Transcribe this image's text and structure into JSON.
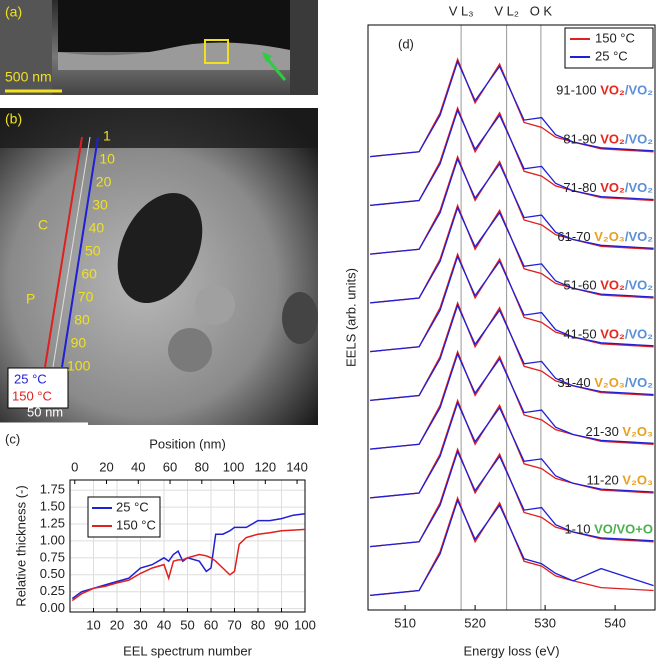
{
  "figure": {
    "a": {
      "label": "(a)",
      "scale": "500 nm"
    },
    "b": {
      "label": "(b)",
      "marker_c": "C",
      "marker_p": "P",
      "scale": "50 nm",
      "legend_25": "25 °C",
      "legend_150": "150 °C",
      "positions": [
        "1",
        "10",
        "20",
        "30",
        "40",
        "50",
        "60",
        "70",
        "80",
        "90",
        "100"
      ]
    },
    "c": {
      "label": "(c)"
    },
    "d": {
      "label": "(d)"
    }
  },
  "chart_data": [
    {
      "type": "line",
      "xlabel": "EEL spectrum number",
      "ylabel": "Relative thickness (-)",
      "x2label": "Position (nm)",
      "x": [
        1,
        5,
        10,
        15,
        20,
        25,
        30,
        35,
        40,
        42,
        44,
        46,
        48,
        50,
        55,
        58,
        60,
        62,
        65,
        68,
        70,
        72,
        75,
        80,
        85,
        90,
        95,
        100
      ],
      "xlim": [
        0,
        100
      ],
      "xticks": [
        10,
        20,
        30,
        40,
        50,
        60,
        70,
        80,
        90,
        100
      ],
      "x2lim": [
        -3,
        145
      ],
      "x2ticks": [
        0,
        20,
        40,
        60,
        80,
        100,
        120,
        140
      ],
      "ylim": [
        -0.05,
        1.9
      ],
      "yticks": [
        {
          "value": 0,
          "label": "0.00"
        },
        {
          "value": 0.25,
          "label": "0.25"
        },
        {
          "value": 0.5,
          "label": "0.50"
        },
        {
          "value": 0.75,
          "label": "0.75"
        },
        {
          "value": 1,
          "label": "1.00"
        },
        {
          "value": 1.25,
          "label": "1.25"
        },
        {
          "value": 1.5,
          "label": "1.50"
        },
        {
          "value": 1.75,
          "label": "1.75"
        }
      ],
      "grid": true,
      "legend": "upper-left",
      "series": [
        {
          "name": "25 °C",
          "color": "#1f1fd6",
          "values": [
            0.15,
            0.25,
            0.3,
            0.35,
            0.4,
            0.45,
            0.6,
            0.65,
            0.75,
            0.7,
            0.8,
            0.85,
            0.7,
            0.75,
            0.7,
            0.55,
            0.6,
            1.1,
            1.1,
            1.15,
            1.2,
            1.2,
            1.2,
            1.3,
            1.3,
            1.33,
            1.38,
            1.4
          ]
        },
        {
          "name": "150 °C",
          "color": "#e01f1f",
          "values": [
            0.12,
            0.22,
            0.3,
            0.33,
            0.38,
            0.42,
            0.52,
            0.6,
            0.65,
            0.45,
            0.7,
            0.72,
            0.72,
            0.75,
            0.8,
            0.78,
            0.75,
            0.7,
            0.6,
            0.5,
            0.55,
            0.95,
            1.05,
            1.1,
            1.12,
            1.15,
            1.16,
            1.17
          ]
        }
      ]
    },
    {
      "type": "stacked-spectra",
      "xlabel": "Energy loss (eV)",
      "ylabel": "EELS (arb. units)",
      "x": [
        505,
        512,
        515,
        517.5,
        520,
        523.5,
        527,
        529.5,
        531.5,
        534,
        538,
        545.5
      ],
      "xlim": [
        504.7,
        545.7
      ],
      "xticks": [
        510,
        520,
        530,
        540
      ],
      "ylim": [
        0,
        12
      ],
      "legend": "upper-right",
      "markers": [
        {
          "x": 518,
          "label": "V L₃"
        },
        {
          "x": 524.5,
          "label": "V L₂"
        },
        {
          "x": 529.4,
          "label": "O K"
        }
      ],
      "series": [
        {
          "name": "150 °C",
          "color": "#e01f1f",
          "values": [
            [
              0.3,
              0.4,
              1.2,
              2.3,
              1.4,
              2.2,
              1.0,
              0.9,
              0.7,
              0.6,
              0.46,
              0.4
            ],
            [
              1.3,
              1.4,
              2.2,
              3.3,
              2.4,
              3.2,
              2.0,
              1.9,
              1.7,
              1.6,
              1.46,
              1.4
            ],
            [
              2.3,
              2.4,
              3.2,
              4.3,
              3.4,
              4.2,
              3.0,
              2.9,
              2.7,
              2.6,
              2.46,
              2.4
            ],
            [
              3.3,
              3.4,
              4.2,
              5.3,
              4.4,
              5.2,
              4.0,
              3.9,
              3.7,
              3.6,
              3.46,
              3.4
            ],
            [
              4.3,
              4.4,
              5.2,
              6.3,
              5.4,
              6.2,
              5.0,
              4.9,
              4.7,
              4.6,
              4.46,
              4.4
            ],
            [
              5.3,
              5.4,
              6.2,
              7.3,
              6.4,
              7.2,
              6.0,
              5.9,
              5.7,
              5.6,
              5.46,
              5.4
            ],
            [
              6.3,
              6.4,
              7.2,
              8.3,
              7.4,
              8.2,
              7.0,
              6.9,
              6.7,
              6.6,
              6.46,
              6.4
            ],
            [
              7.3,
              7.4,
              8.2,
              9.3,
              8.4,
              9.2,
              8.0,
              7.9,
              7.7,
              7.6,
              7.46,
              7.4
            ],
            [
              8.3,
              8.4,
              9.2,
              10.3,
              9.4,
              10.2,
              9.0,
              8.9,
              8.7,
              8.6,
              8.46,
              8.4
            ],
            [
              9.3,
              9.4,
              10.2,
              11.3,
              10.4,
              11.2,
              10.0,
              9.9,
              9.7,
              9.6,
              9.46,
              9.4
            ]
          ]
        },
        {
          "name": "25 °C",
          "color": "#1f1fd6",
          "values": [
            [
              0.3,
              0.4,
              1.15,
              2.25,
              1.45,
              2.15,
              1.05,
              0.95,
              0.75,
              0.6,
              0.85,
              0.5
            ],
            [
              1.3,
              1.4,
              2.15,
              3.25,
              2.45,
              3.15,
              2.05,
              2.1,
              1.75,
              1.6,
              1.48,
              1.42
            ],
            [
              2.3,
              2.4,
              3.15,
              4.25,
              3.45,
              4.15,
              3.05,
              3.1,
              2.75,
              2.6,
              2.48,
              2.42
            ],
            [
              3.3,
              3.4,
              4.15,
              5.25,
              4.45,
              5.15,
              4.05,
              4.1,
              3.75,
              3.6,
              3.48,
              3.42
            ],
            [
              4.3,
              4.4,
              5.15,
              6.25,
              5.45,
              6.15,
              5.05,
              5.1,
              4.75,
              4.6,
              4.48,
              4.42
            ],
            [
              5.3,
              5.4,
              6.15,
              7.25,
              6.45,
              7.15,
              6.05,
              6.1,
              5.75,
              5.6,
              5.48,
              5.42
            ],
            [
              6.3,
              6.4,
              7.15,
              8.25,
              7.45,
              8.15,
              7.05,
              7.1,
              6.75,
              6.6,
              6.48,
              6.42
            ],
            [
              7.3,
              7.4,
              8.15,
              9.25,
              8.45,
              9.15,
              8.05,
              8.1,
              7.75,
              7.6,
              7.48,
              7.42
            ],
            [
              8.3,
              8.4,
              9.15,
              10.25,
              9.45,
              10.15,
              9.05,
              9.1,
              8.75,
              8.6,
              8.48,
              8.42
            ],
            [
              9.3,
              9.4,
              10.15,
              11.25,
              10.45,
              11.15,
              10.05,
              10.1,
              9.75,
              9.6,
              9.48,
              9.42
            ]
          ]
        }
      ],
      "spectrum_labels": [
        {
          "range": "1-10",
          "phases": [
            {
              "text": "VO/VO+O",
              "color": "#4caf50"
            }
          ]
        },
        {
          "range": "11-20",
          "phases": [
            {
              "text": "V₂O₃",
              "color": "#e8a020"
            }
          ]
        },
        {
          "range": "21-30",
          "phases": [
            {
              "text": "V₂O₃",
              "color": "#e8a020"
            }
          ]
        },
        {
          "range": "31-40",
          "phases": [
            {
              "text": "V₂O₃",
              "color": "#e8a020"
            },
            {
              "text": "/VO₂",
              "color": "#5b8fd6"
            }
          ]
        },
        {
          "range": "41-50",
          "phases": [
            {
              "text": "VO₂",
              "color": "#e8261c"
            },
            {
              "text": "/VO₂",
              "color": "#5b8fd6"
            }
          ]
        },
        {
          "range": "51-60",
          "phases": [
            {
              "text": "VO₂",
              "color": "#e8261c"
            },
            {
              "text": "/VO₂",
              "color": "#5b8fd6"
            }
          ]
        },
        {
          "range": "61-70",
          "phases": [
            {
              "text": "V₂O₃",
              "color": "#e8a020"
            },
            {
              "text": "/VO₂",
              "color": "#5b8fd6"
            }
          ]
        },
        {
          "range": "71-80",
          "phases": [
            {
              "text": "VO₂",
              "color": "#e8261c"
            },
            {
              "text": "/VO₂",
              "color": "#5b8fd6"
            }
          ]
        },
        {
          "range": "81-90",
          "phases": [
            {
              "text": "VO₂",
              "color": "#e8261c"
            },
            {
              "text": "/VO₂",
              "color": "#5b8fd6"
            }
          ]
        },
        {
          "range": "91-100",
          "phases": [
            {
              "text": "VO₂",
              "color": "#e8261c"
            },
            {
              "text": "/VO₂",
              "color": "#5b8fd6"
            }
          ]
        }
      ]
    }
  ]
}
